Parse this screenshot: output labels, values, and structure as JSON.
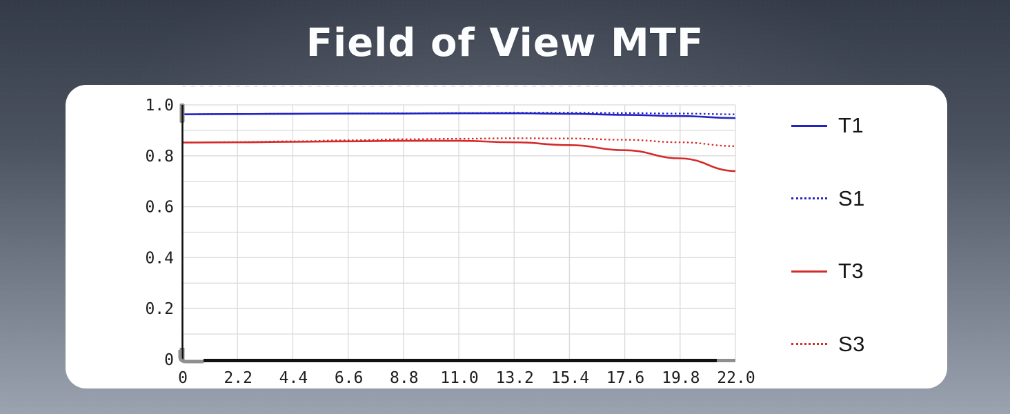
{
  "title": "Field of View MTF",
  "colors": {
    "blue": "#2323c4",
    "red": "#d42a2a",
    "grid": "#dadada",
    "axis_black": "#111111",
    "axis_gray": "#8f8f8f",
    "card_bg": "#ffffff",
    "tick_label": "#1c1c1c",
    "bg_top": "#343b48",
    "bg_bottom": "#9ba3b1",
    "title_color": "#fcfdfe"
  },
  "chart_data": {
    "type": "line",
    "title": "Field of View MTF",
    "xlabel": "",
    "ylabel": "",
    "xlim": [
      0,
      22
    ],
    "ylim": [
      0,
      1.0
    ],
    "grid": "on",
    "minor_y_grid_step": 0.1,
    "legend_position": "right",
    "x_ticks": [
      {
        "value": 0,
        "label": "0"
      },
      {
        "value": 2.2,
        "label": "2.2"
      },
      {
        "value": 4.4,
        "label": "4.4"
      },
      {
        "value": 6.6,
        "label": "6.6"
      },
      {
        "value": 8.8,
        "label": "8.8"
      },
      {
        "value": 11.0,
        "label": "11.0"
      },
      {
        "value": 13.2,
        "label": "13.2"
      },
      {
        "value": 15.4,
        "label": "15.4"
      },
      {
        "value": 17.6,
        "label": "17.6"
      },
      {
        "value": 19.8,
        "label": "19.8"
      },
      {
        "value": 22.0,
        "label": "22.0"
      }
    ],
    "y_ticks": [
      {
        "value": 1.0,
        "label": "1.0"
      },
      {
        "value": 0.8,
        "label": "0.8"
      },
      {
        "value": 0.6,
        "label": "0.6"
      },
      {
        "value": 0.4,
        "label": "0.4"
      },
      {
        "value": 0.2,
        "label": "0.2"
      },
      {
        "value": 0,
        "label": "0"
      }
    ],
    "x": [
      0,
      2.2,
      4.4,
      6.6,
      8.8,
      11.0,
      13.2,
      15.4,
      17.6,
      19.8,
      22.0
    ],
    "series": [
      {
        "name": "T1",
        "color": "#2323c4",
        "style": "solid",
        "values": [
          0.963,
          0.964,
          0.965,
          0.966,
          0.966,
          0.967,
          0.967,
          0.965,
          0.961,
          0.956,
          0.948
        ]
      },
      {
        "name": "S1",
        "color": "#2323c4",
        "style": "dotted",
        "values": [
          0.963,
          0.964,
          0.965,
          0.966,
          0.967,
          0.968,
          0.969,
          0.969,
          0.968,
          0.966,
          0.963
        ]
      },
      {
        "name": "T3",
        "color": "#d42a2a",
        "style": "solid",
        "values": [
          0.852,
          0.853,
          0.855,
          0.857,
          0.859,
          0.859,
          0.853,
          0.842,
          0.822,
          0.79,
          0.74
        ]
      },
      {
        "name": "S3",
        "color": "#d42a2a",
        "style": "dotted",
        "values": [
          0.852,
          0.854,
          0.857,
          0.861,
          0.865,
          0.867,
          0.869,
          0.868,
          0.863,
          0.853,
          0.838
        ]
      }
    ]
  }
}
